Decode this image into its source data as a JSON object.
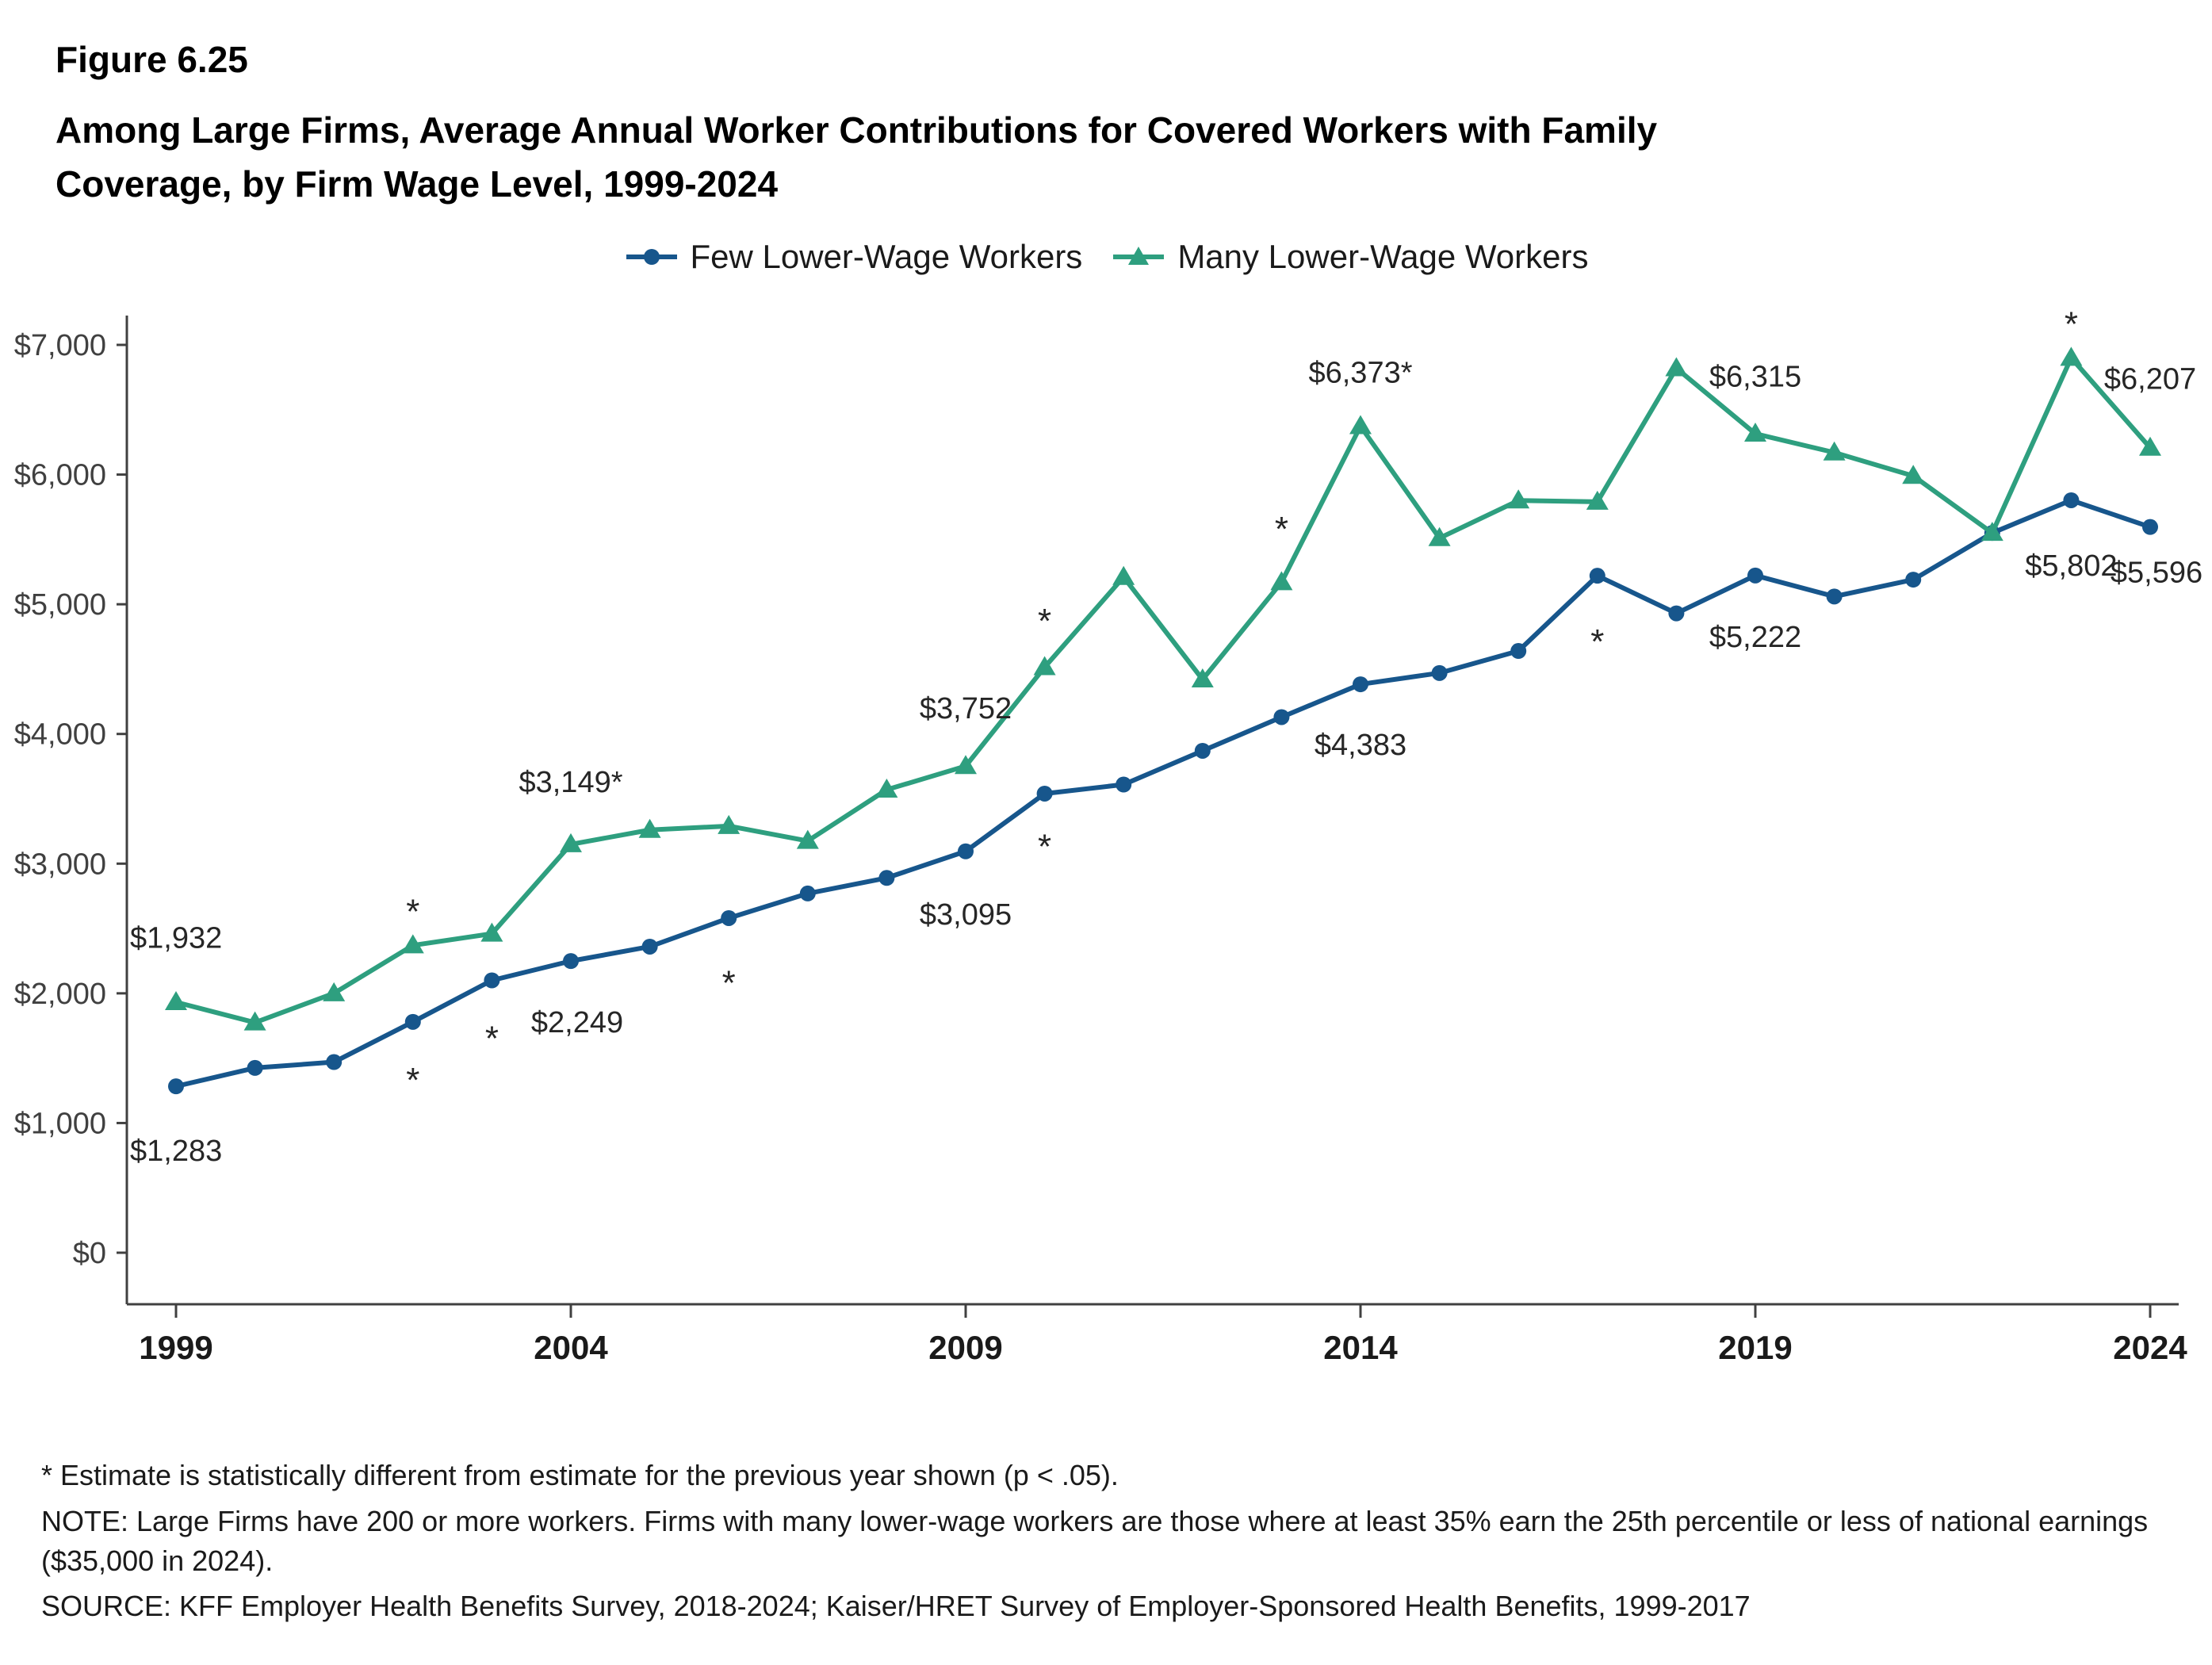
{
  "header": {
    "figure_label": "Figure 6.25",
    "title_line1": "Among Large Firms, Average Annual Worker Contributions for Covered Workers with Family",
    "title_line2": "Coverage, by Firm Wage Level, 1999-2024"
  },
  "chart_data": {
    "type": "line",
    "title": "Among Large Firms, Average Annual Worker Contributions for Covered Workers with Family Coverage, by Firm Wage Level, 1999-2024",
    "xlabel": "",
    "ylabel": "",
    "ylim": [
      0,
      7000
    ],
    "ytick_step": 1000,
    "xticks": [
      1999,
      2004,
      2009,
      2014,
      2019,
      2024
    ],
    "legend_position": "top",
    "grid": false,
    "x": [
      1999,
      2000,
      2001,
      2002,
      2003,
      2004,
      2005,
      2006,
      2007,
      2008,
      2009,
      2010,
      2011,
      2012,
      2013,
      2014,
      2015,
      2016,
      2017,
      2018,
      2019,
      2020,
      2021,
      2022,
      2023,
      2024
    ],
    "series": [
      {
        "name": "Few Lower-Wage Workers",
        "color": "#17568c",
        "marker": "circle",
        "values": [
          1283,
          1425,
          1470,
          1780,
          2100,
          2249,
          2360,
          2580,
          2770,
          2890,
          3095,
          3540,
          3610,
          3870,
          4130,
          4383,
          4470,
          4640,
          5220,
          4930,
          5222,
          5060,
          5190,
          5550,
          5802,
          5596
        ]
      },
      {
        "name": "Many Lower-Wage Workers",
        "color": "#2e9f7f",
        "marker": "triangle",
        "values": [
          1932,
          1775,
          2000,
          2370,
          2460,
          3149,
          3260,
          3290,
          3175,
          3570,
          3752,
          4515,
          5210,
          4420,
          5170,
          6373,
          5510,
          5800,
          5790,
          6820,
          6315,
          6170,
          5990,
          5550,
          6900,
          6207
        ]
      }
    ],
    "point_labels": [
      {
        "x": 1999,
        "y": 2430,
        "text": "$1,932",
        "anchor": "start",
        "dx": -58
      },
      {
        "x": 1999,
        "y": 790,
        "text": "$1,283",
        "anchor": "start",
        "dx": -58
      },
      {
        "x": 2004,
        "y": 3630,
        "text": "$3,149*",
        "anchor": "middle",
        "dx": 0
      },
      {
        "x": 2004,
        "y": 1780,
        "text": "$2,249",
        "anchor": "middle",
        "dx": 8
      },
      {
        "x": 2009,
        "y": 4200,
        "text": "$3,752",
        "anchor": "middle",
        "dx": 0
      },
      {
        "x": 2009,
        "y": 2610,
        "text": "$3,095",
        "anchor": "middle",
        "dx": 0
      },
      {
        "x": 2014,
        "y": 6790,
        "text": "$6,373*",
        "anchor": "middle",
        "dx": 0
      },
      {
        "x": 2014,
        "y": 3920,
        "text": "$4,383",
        "anchor": "middle",
        "dx": 0
      },
      {
        "x": 2019,
        "y": 6760,
        "text": "$6,315",
        "anchor": "middle",
        "dx": 0
      },
      {
        "x": 2019,
        "y": 4750,
        "text": "$5,222",
        "anchor": "middle",
        "dx": 0
      },
      {
        "x": 2023,
        "y": 5300,
        "text": "$5,802",
        "anchor": "middle",
        "dx": 0
      },
      {
        "x": 2024,
        "y": 5250,
        "text": "$5,596",
        "anchor": "middle",
        "dx": 8
      },
      {
        "x": 2024,
        "y": 6740,
        "text": "$6,207",
        "anchor": "middle",
        "dx": 0
      }
    ],
    "asterisks": [
      {
        "x": 2002,
        "y": 2700
      },
      {
        "x": 2002,
        "y": 1400
      },
      {
        "x": 2003,
        "y": 1720
      },
      {
        "x": 2006,
        "y": 2150
      },
      {
        "x": 2010,
        "y": 4940
      },
      {
        "x": 2010,
        "y": 3200
      },
      {
        "x": 2013,
        "y": 5650
      },
      {
        "x": 2017,
        "y": 4780
      },
      {
        "x": 2023,
        "y": 7230
      }
    ]
  },
  "footnotes": {
    "asterisk_note": "* Estimate is statistically different from estimate for the previous year shown (p < .05).",
    "note": "NOTE: Large Firms have 200 or more workers. Firms with many lower-wage workers are those where at least 35% earn the 25th percentile or less of national earnings ($35,000 in 2024).",
    "source": "SOURCE: KFF Employer Health Benefits Survey, 2018-2024; Kaiser/HRET Survey of Employer-Sponsored Health Benefits, 1999-2017"
  }
}
